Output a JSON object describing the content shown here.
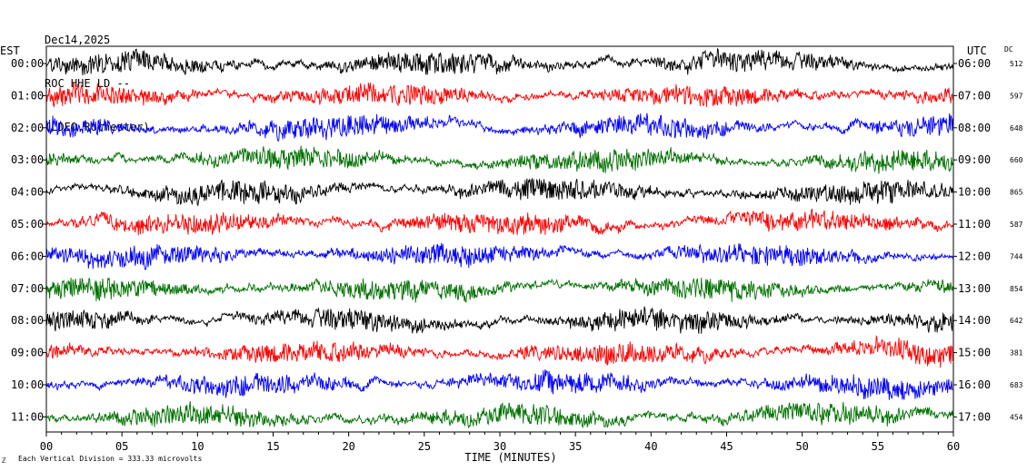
{
  "header": {
    "date": "Dec14,2025",
    "station": "ROC HHE LD --",
    "network": "(LDEO,Rochester)"
  },
  "left_axis_title": "EST",
  "right_axis_title": "UTC",
  "dc_title": "DC",
  "footer": {
    "mark": "ℤ",
    "scale_text": "Each Vertical Division = 333.33 microvolts"
  },
  "colors": {
    "trace_cycle": [
      "#000000",
      "#ff0000",
      "#0000ff",
      "#007000"
    ],
    "frame": "#000000",
    "background": "#ffffff"
  },
  "chart_data": {
    "type": "line",
    "title": "",
    "xlabel": "TIME (MINUTES)",
    "ylabel": "",
    "xlim": [
      0,
      60
    ],
    "x_ticks": [
      0,
      5,
      10,
      15,
      20,
      25,
      30,
      35,
      40,
      45,
      50,
      55,
      60
    ],
    "x_tick_labels": [
      "00",
      "05",
      "10",
      "15",
      "20",
      "25",
      "30",
      "35",
      "40",
      "45",
      "50",
      "55",
      "60"
    ],
    "rows": [
      {
        "est": "00:00",
        "utc": "06:00",
        "dc": "512",
        "color": "#000000"
      },
      {
        "est": "01:00",
        "utc": "07:00",
        "dc": "597",
        "color": "#ff0000"
      },
      {
        "est": "02:00",
        "utc": "08:00",
        "dc": "648",
        "color": "#0000ff"
      },
      {
        "est": "03:00",
        "utc": "09:00",
        "dc": "660",
        "color": "#007000"
      },
      {
        "est": "04:00",
        "utc": "10:00",
        "dc": "865",
        "color": "#000000"
      },
      {
        "est": "05:00",
        "utc": "11:00",
        "dc": "587",
        "color": "#ff0000"
      },
      {
        "est": "06:00",
        "utc": "12:00",
        "dc": "744",
        "color": "#0000ff"
      },
      {
        "est": "07:00",
        "utc": "13:00",
        "dc": "854",
        "color": "#007000"
      },
      {
        "est": "08:00",
        "utc": "14:00",
        "dc": "642",
        "color": "#000000"
      },
      {
        "est": "09:00",
        "utc": "15:00",
        "dc": "381",
        "color": "#ff0000"
      },
      {
        "est": "10:00",
        "utc": "16:00",
        "dc": "683",
        "color": "#0000ff"
      },
      {
        "est": "11:00",
        "utc": "17:00",
        "dc": "454",
        "color": "#007000"
      }
    ]
  }
}
